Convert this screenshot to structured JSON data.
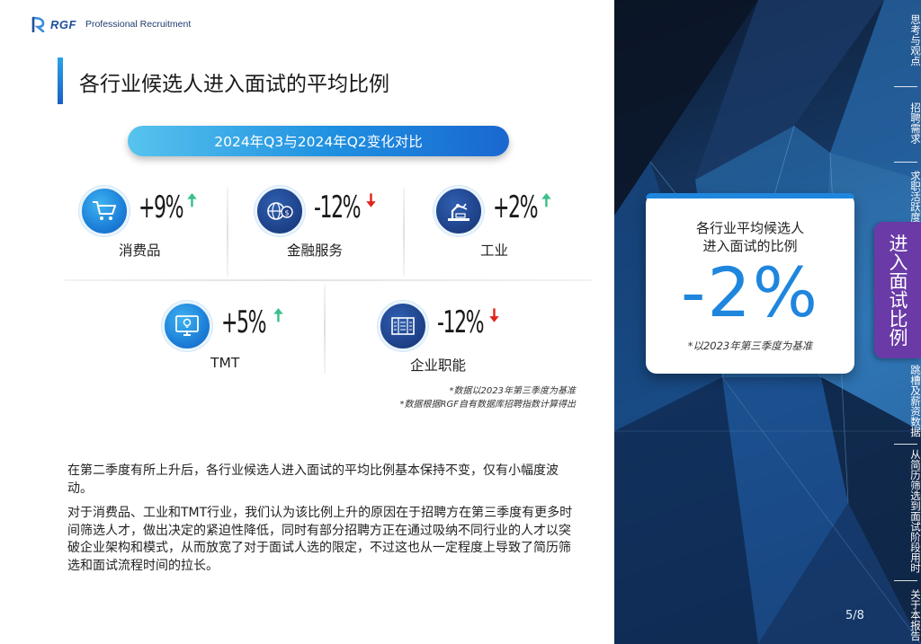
{
  "brand": {
    "mark": "RGF",
    "name": "Professional Recruitment"
  },
  "page_title": "各行业候选人进入面试的平均比例",
  "comparison_label": "2024年Q3与2024年Q2变化对比",
  "stats": [
    {
      "label": "消费品",
      "value": "+9%",
      "direction": "up",
      "icon": "shopping-cart-icon"
    },
    {
      "label": "金融服务",
      "value": "-12%",
      "direction": "down",
      "icon": "globe-money-icon"
    },
    {
      "label": "工业",
      "value": "+2%",
      "direction": "up",
      "icon": "robot-arm-icon"
    },
    {
      "label": "TMT",
      "value": "+5%",
      "direction": "up",
      "icon": "monitor-bulb-icon"
    },
    {
      "label": "企业职能",
      "value": "-12%",
      "direction": "down",
      "icon": "office-building-icon"
    }
  ],
  "arrows": {
    "up": "🠅",
    "down": "🠇"
  },
  "notes": [
    "*数据以2023年第三季度为基准",
    "*数据根据RGF自有数据库招聘指数计算得出"
  ],
  "paragraphs": [
    "在第二季度有所上升后，各行业候选人进入面试的平均比例基本保持不变，仅有小幅度波动。",
    "对于消费品、工业和TMT行业，我们认为该比例上升的原因在于招聘方在第三季度有更多时间筛选人才，做出决定的紧迫性降低，同时有部分招聘方正在通过吸纳不同行业的人才以突破企业架构和模式，从而放宽了对于面试人选的限定，不过这也从一定程度上导致了简历筛选和面试流程时间的拉长。"
  ],
  "card": {
    "title_line1": "各行业平均候选人",
    "title_line2": "进入面试的比例",
    "value": "-2%",
    "note": "*以2023年第三季度为基准"
  },
  "nav": {
    "items": [
      "思考与观点",
      "招聘需求",
      "求职活跃度",
      "进入面试比例",
      "跳槽及薪资数据",
      "从简历筛选到面试阶段用时",
      "关于本报告"
    ],
    "active": "进入面试比例"
  },
  "page_number": "5/8",
  "colors": {
    "accent": "#1f86de",
    "active_nav": "#6a3aa6",
    "up": "#3cc08a",
    "down": "#e0261c"
  }
}
